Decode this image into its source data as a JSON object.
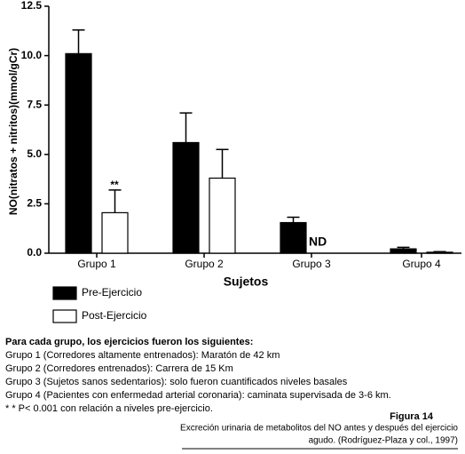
{
  "chart_data": {
    "type": "bar",
    "y_label": "NO(nitratos + nitritos)(mmol/gCr)",
    "x_label": "Sujetos",
    "categories": [
      "Grupo 1",
      "Grupo 2",
      "Grupo 3",
      "Grupo 4"
    ],
    "series": [
      {
        "name": "Pre-Ejercicio",
        "color": "#000000",
        "values": [
          10.1,
          5.6,
          1.55,
          0.22
        ],
        "errors": [
          1.2,
          1.5,
          0.27,
          0.08
        ]
      },
      {
        "name": "Post-Ejercicio",
        "color": "#ffffff",
        "values": [
          2.05,
          3.8,
          null,
          0.05
        ],
        "errors": [
          1.15,
          1.45,
          null,
          0.03
        ]
      }
    ],
    "annotations": [
      "**",
      "ND"
    ],
    "ylim": [
      0,
      12.5
    ],
    "yticks": [
      {
        "value": 0,
        "label": "0.0"
      },
      {
        "value": 2.5,
        "label": "2.5"
      },
      {
        "value": 5,
        "label": "5.0"
      },
      {
        "value": 7.5,
        "label": "7.5"
      },
      {
        "value": 10,
        "label": "10.0"
      },
      {
        "value": 12.5,
        "label": "12.5"
      }
    ]
  },
  "notes": {
    "heading": "Para cada grupo, los ejercicios fueron los siguientes:",
    "lines": [
      "Grupo 1 (Corredores altamente entrenados): Maratón de 42 km",
      "Grupo 2 (Corredores entrenados): Carrera de 15 Km",
      "Grupo 3 (Sujetos sanos sedentarios): solo fueron cuantificados niveles basales",
      "Grupo 4 (Pacientes con enfermedad arterial coronaria): caminata supervisada de 3-6 km.",
      "* * P< 0.001 con relación a niveles pre-ejercicio."
    ]
  },
  "figure": {
    "label": "Figura 14",
    "caption": [
      "Excreción urinaria de metabolitos del NO antes y después del ejercicio",
      "agudo. (Rodríguez-Plaza y col., 1997)"
    ]
  }
}
